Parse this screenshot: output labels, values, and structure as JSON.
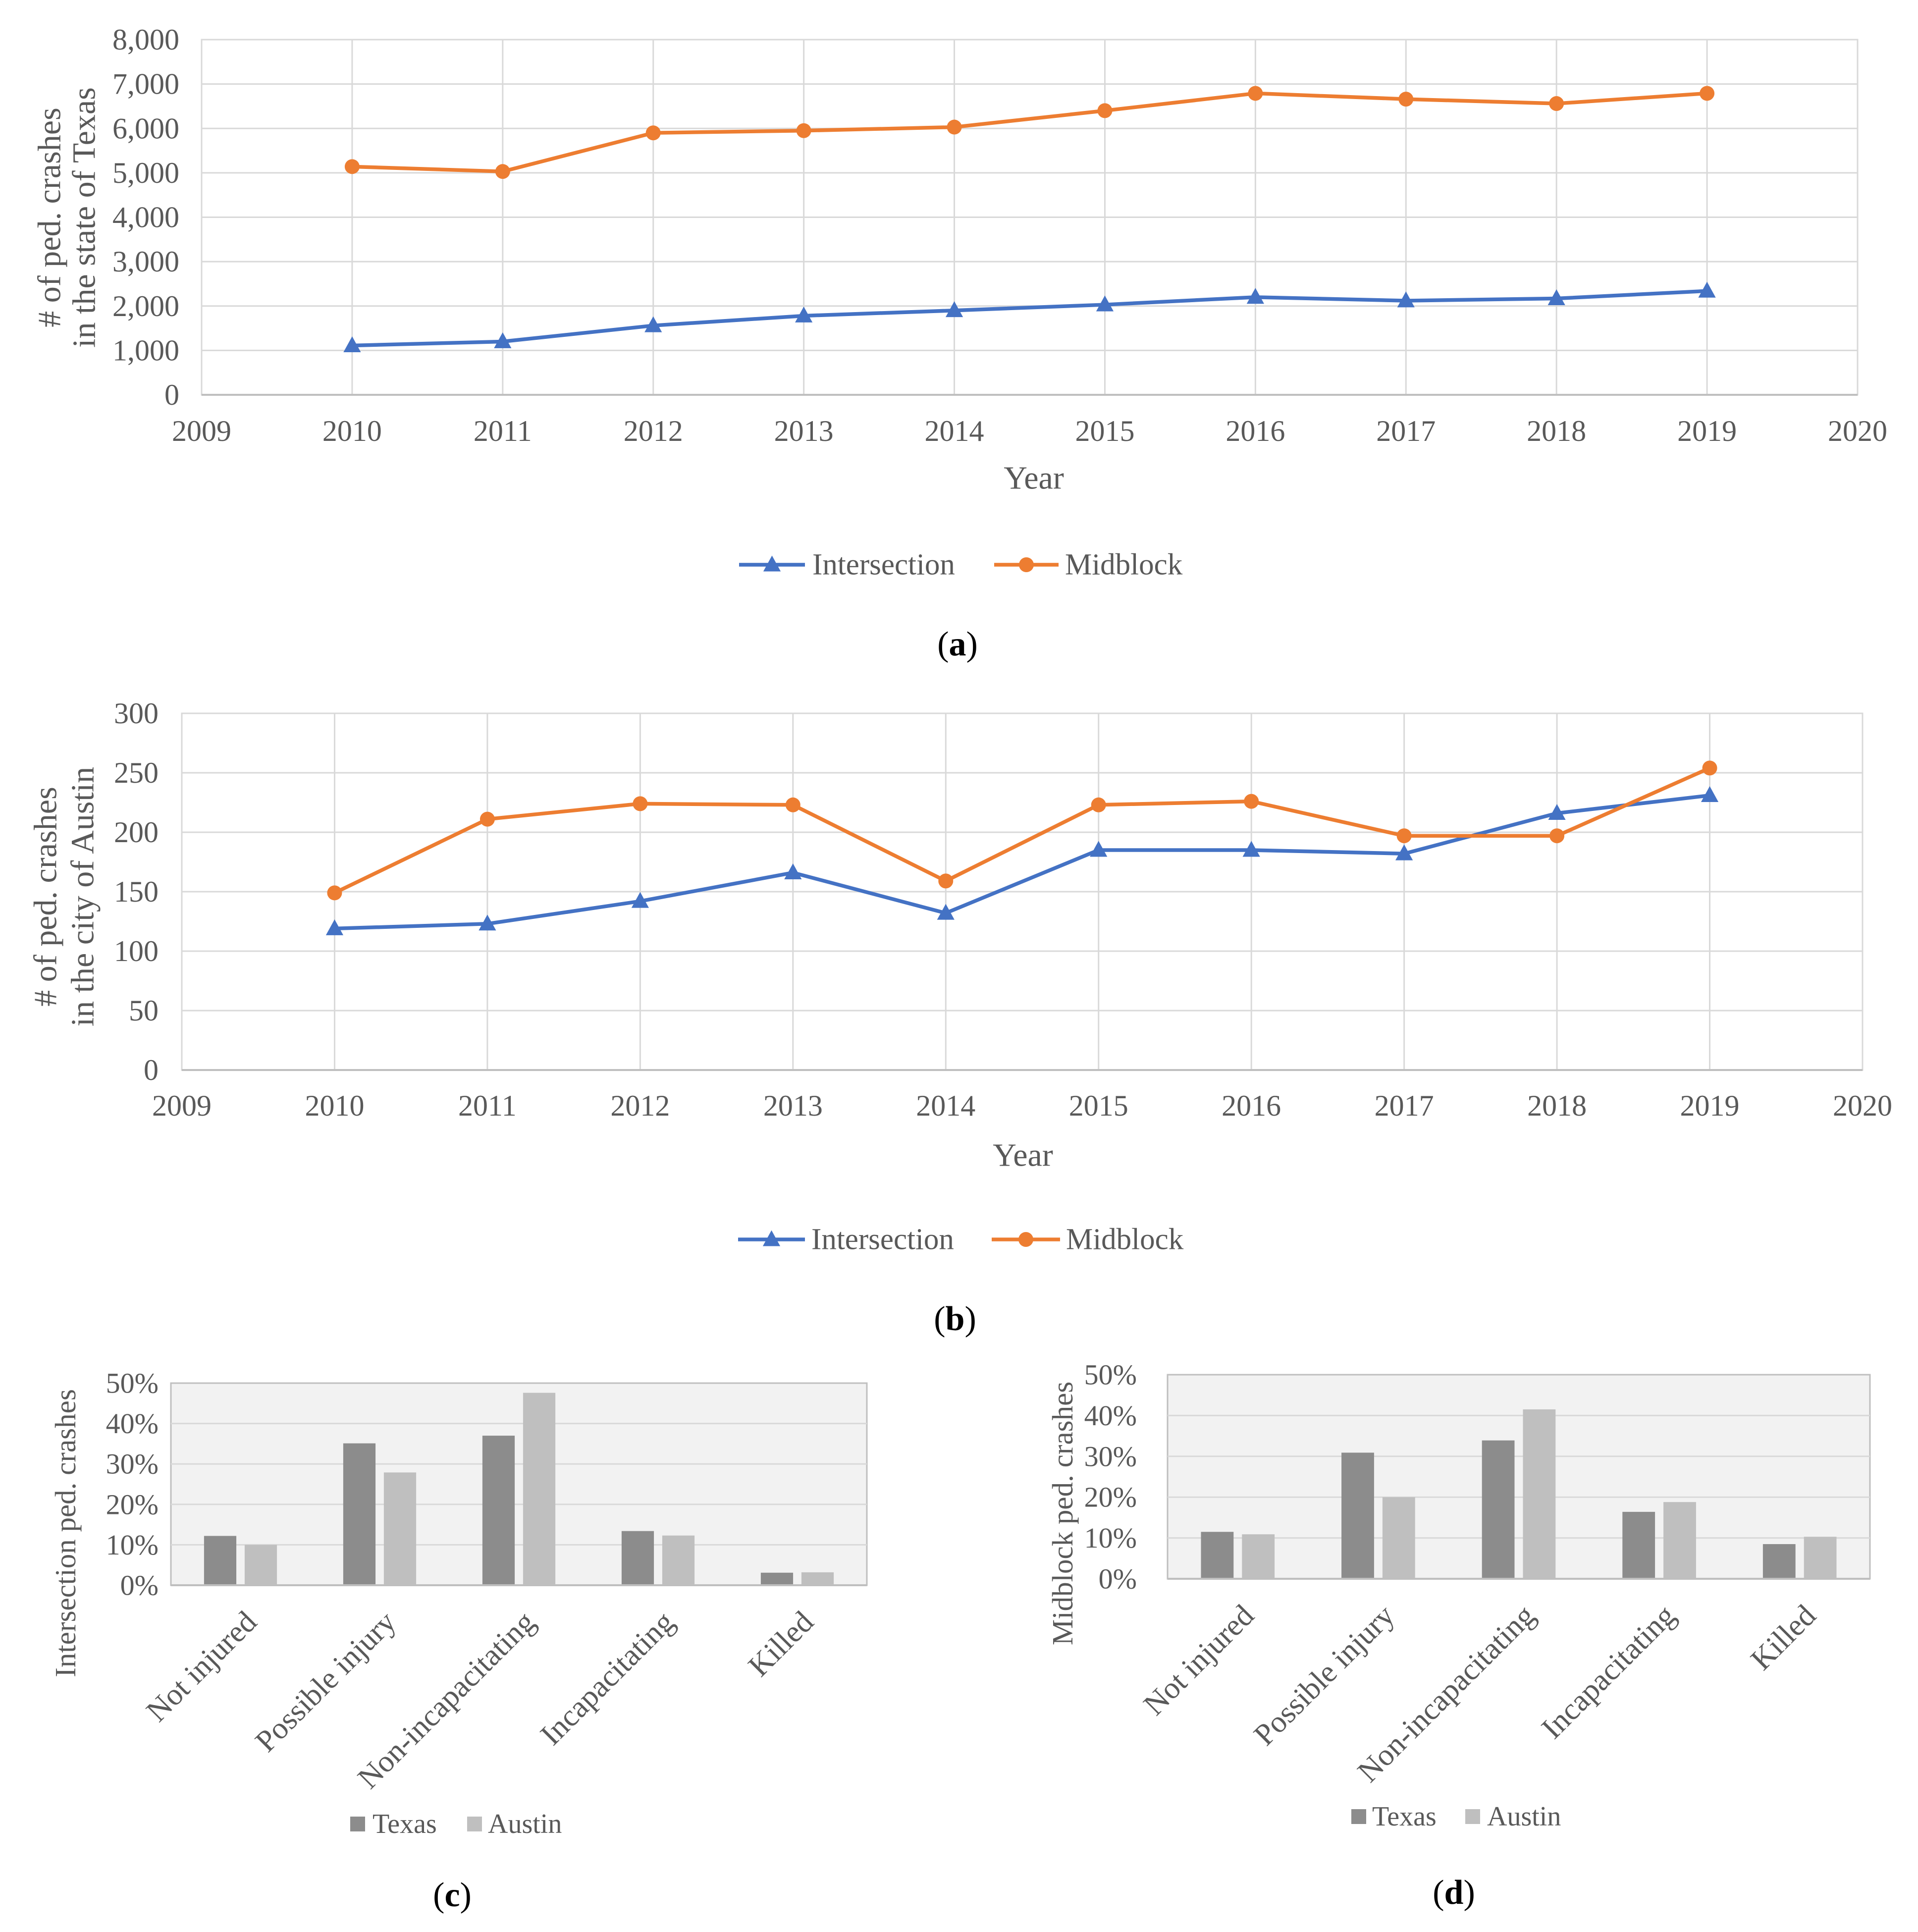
{
  "chart_data": [
    {
      "type": "line",
      "caption": {
        "open": "(",
        "letter": "a",
        "close": ")"
      },
      "xlabel": "Year",
      "ylabel_lines": [
        "# of ped. crashes",
        "in the state of Texas"
      ],
      "xlim": [
        2009,
        2020
      ],
      "ylim": [
        0,
        8000
      ],
      "xtick_labels": [
        "2009",
        "2010",
        "2011",
        "2012",
        "2013",
        "2014",
        "2015",
        "2016",
        "2017",
        "2018",
        "2019",
        "2020"
      ],
      "yticks": [
        0,
        1000,
        2000,
        3000,
        4000,
        5000,
        6000,
        7000,
        8000
      ],
      "ytick_labels": [
        "0",
        "1,000",
        "2,000",
        "3,000",
        "4,000",
        "5,000",
        "6,000",
        "7,000",
        "8,000"
      ],
      "x": [
        2010,
        2011,
        2012,
        2013,
        2014,
        2015,
        2016,
        2017,
        2018,
        2019
      ],
      "series": [
        {
          "name": "Intersection",
          "color": "#4472C4",
          "marker": "triangle",
          "values": [
            1110,
            1200,
            1560,
            1780,
            1900,
            2030,
            2200,
            2120,
            2170,
            2340
          ]
        },
        {
          "name": "Midblock",
          "color": "#ED7D31",
          "marker": "circle",
          "values": [
            5140,
            5030,
            5900,
            5950,
            6030,
            6400,
            6790,
            6660,
            6560,
            6790
          ]
        }
      ],
      "grid": true,
      "legend": "bottom"
    },
    {
      "type": "line",
      "caption": {
        "open": "(",
        "letter": "b",
        "close": ")"
      },
      "xlabel": "Year",
      "ylabel_lines": [
        "# of ped. crashes",
        "in the city of Austin"
      ],
      "xlim": [
        2009,
        2020
      ],
      "ylim": [
        0,
        300
      ],
      "xtick_labels": [
        "2009",
        "2010",
        "2011",
        "2012",
        "2013",
        "2014",
        "2015",
        "2016",
        "2017",
        "2018",
        "2019",
        "2020"
      ],
      "yticks": [
        0,
        50,
        100,
        150,
        200,
        250,
        300
      ],
      "ytick_labels": [
        "0",
        "50",
        "100",
        "150",
        "200",
        "250",
        "300"
      ],
      "x": [
        2010,
        2011,
        2012,
        2013,
        2014,
        2015,
        2016,
        2017,
        2018,
        2019
      ],
      "series": [
        {
          "name": "Intersection",
          "color": "#4472C4",
          "marker": "triangle",
          "values": [
            119,
            123,
            142,
            166,
            132,
            185,
            185,
            182,
            216,
            231
          ]
        },
        {
          "name": "Midblock",
          "color": "#ED7D31",
          "marker": "circle",
          "values": [
            149,
            211,
            224,
            223,
            159,
            223,
            226,
            197,
            197,
            254
          ]
        }
      ],
      "grid": true,
      "legend": "bottom"
    },
    {
      "type": "bar",
      "caption": {
        "open": "(",
        "letter": "c",
        "close": ")"
      },
      "ylabel": "Intersection ped. crashes",
      "categories": [
        "Not injured",
        "Possible injury",
        "Non-incapacitating",
        "Incapacitating",
        "Killed"
      ],
      "ylim": [
        0,
        50
      ],
      "yticks": [
        0,
        10,
        20,
        30,
        40,
        50
      ],
      "ytick_labels": [
        "0%",
        "10%",
        "20%",
        "30%",
        "40%",
        "50%"
      ],
      "series": [
        {
          "name": "Texas",
          "color": "#8C8C8C",
          "values": [
            12.2,
            35.1,
            37.0,
            13.4,
            3.1
          ]
        },
        {
          "name": "Austin",
          "color": "#BFBFBF",
          "values": [
            10.0,
            27.9,
            47.6,
            12.3,
            3.2
          ]
        }
      ],
      "grid": true,
      "legend": "bottom"
    },
    {
      "type": "bar",
      "caption": {
        "open": "(",
        "letter": "d",
        "close": ")"
      },
      "ylabel": "Midblock ped. crashes",
      "categories": [
        "Not injured",
        "Possible injury",
        "Non-incapacitating",
        "Incapacitating",
        "Killed"
      ],
      "ylim": [
        0,
        50
      ],
      "yticks": [
        0,
        10,
        20,
        30,
        40,
        50
      ],
      "ytick_labels": [
        "0%",
        "10%",
        "20%",
        "30%",
        "40%",
        "50%"
      ],
      "series": [
        {
          "name": "Texas",
          "color": "#8C8C8C",
          "values": [
            11.5,
            30.9,
            33.9,
            16.4,
            8.5
          ]
        },
        {
          "name": "Austin",
          "color": "#BFBFBF",
          "values": [
            10.9,
            20.0,
            41.5,
            18.8,
            10.3
          ]
        }
      ],
      "grid": true,
      "legend": "bottom"
    }
  ]
}
